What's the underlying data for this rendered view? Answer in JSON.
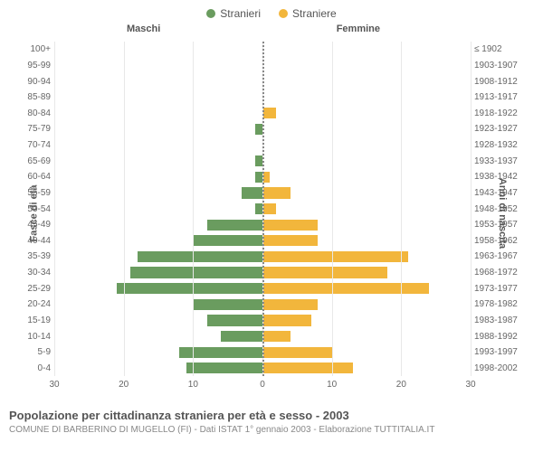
{
  "legend": {
    "male": {
      "label": "Stranieri",
      "color": "#6a9c5f"
    },
    "female": {
      "label": "Straniere",
      "color": "#f2b63c"
    }
  },
  "columns": {
    "left": "Maschi",
    "right": "Femmine"
  },
  "axes": {
    "y_left_title": "Fasce di età",
    "y_right_title": "Anni di nascita",
    "x_max": 30,
    "x_ticks": [
      30,
      20,
      10,
      0,
      10,
      20,
      30
    ],
    "grid_color": "#e8e8e8",
    "center_line_color": "#888888"
  },
  "rows": [
    {
      "age": "100+",
      "birth": "≤ 1902",
      "m": 0,
      "f": 0
    },
    {
      "age": "95-99",
      "birth": "1903-1907",
      "m": 0,
      "f": 0
    },
    {
      "age": "90-94",
      "birth": "1908-1912",
      "m": 0,
      "f": 0
    },
    {
      "age": "85-89",
      "birth": "1913-1917",
      "m": 0,
      "f": 0
    },
    {
      "age": "80-84",
      "birth": "1918-1922",
      "m": 0,
      "f": 2
    },
    {
      "age": "75-79",
      "birth": "1923-1927",
      "m": 1,
      "f": 0
    },
    {
      "age": "70-74",
      "birth": "1928-1932",
      "m": 0,
      "f": 0
    },
    {
      "age": "65-69",
      "birth": "1933-1937",
      "m": 1,
      "f": 0
    },
    {
      "age": "60-64",
      "birth": "1938-1942",
      "m": 1,
      "f": 1
    },
    {
      "age": "55-59",
      "birth": "1943-1947",
      "m": 3,
      "f": 4
    },
    {
      "age": "50-54",
      "birth": "1948-1952",
      "m": 1,
      "f": 2
    },
    {
      "age": "45-49",
      "birth": "1953-1957",
      "m": 8,
      "f": 8
    },
    {
      "age": "40-44",
      "birth": "1958-1962",
      "m": 10,
      "f": 8
    },
    {
      "age": "35-39",
      "birth": "1963-1967",
      "m": 18,
      "f": 21
    },
    {
      "age": "30-34",
      "birth": "1968-1972",
      "m": 19,
      "f": 18
    },
    {
      "age": "25-29",
      "birth": "1973-1977",
      "m": 21,
      "f": 24
    },
    {
      "age": "20-24",
      "birth": "1978-1982",
      "m": 10,
      "f": 8
    },
    {
      "age": "15-19",
      "birth": "1983-1987",
      "m": 8,
      "f": 7
    },
    {
      "age": "10-14",
      "birth": "1988-1992",
      "m": 6,
      "f": 4
    },
    {
      "age": "5-9",
      "birth": "1993-1997",
      "m": 12,
      "f": 10
    },
    {
      "age": "0-4",
      "birth": "1998-2002",
      "m": 11,
      "f": 13
    }
  ],
  "footer": {
    "title": "Popolazione per cittadinanza straniera per età e sesso - 2003",
    "subtitle": "COMUNE DI BARBERINO DI MUGELLO (FI) - Dati ISTAT 1° gennaio 2003 - Elaborazione TUTTITALIA.IT"
  },
  "styling": {
    "background": "#ffffff",
    "label_color": "#666666",
    "title_font_size": 13,
    "subtitle_font_size": 10
  }
}
